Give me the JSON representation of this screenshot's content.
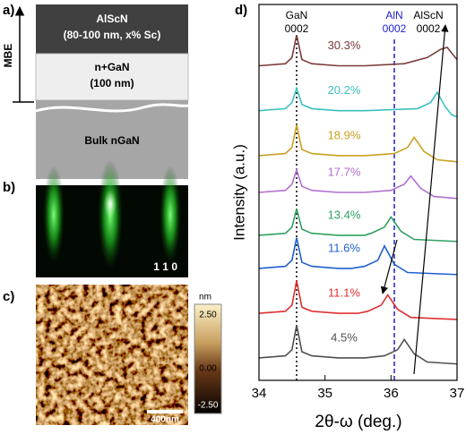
{
  "panels": {
    "a": {
      "label": "a)",
      "growth": "MBE",
      "layers": [
        {
          "name": "AlScN",
          "detail": "(80-100 nm, x% Sc)"
        },
        {
          "name": "n+GaN",
          "detail": "(100 nm)"
        },
        {
          "name": "Bulk nGaN"
        }
      ]
    },
    "b": {
      "label": "b)",
      "direction": "1 1 0"
    },
    "c": {
      "label": "c)",
      "scale_bar": "400nm",
      "colorbar": {
        "unit": "nm",
        "ticks": [
          "2.50",
          "0.00",
          "-2.50"
        ]
      }
    }
  },
  "chart_data": {
    "type": "line",
    "panel_label": "d)",
    "x_label": "2θ-ω (deg.)",
    "y_label": "Intensity (a.u.)",
    "xlim": [
      34,
      37
    ],
    "xticks": [
      34,
      35,
      36,
      37
    ],
    "ylim": [
      0,
      9.2
    ],
    "reference_lines": [
      {
        "name": "GaN",
        "reflection": "0002",
        "x": 34.57,
        "color": "#000000",
        "style": "dotted"
      },
      {
        "name": "AlN",
        "reflection": "0002",
        "x": 36.05,
        "color": "#1f1fd0",
        "style": "dashed"
      }
    ],
    "peak_label": {
      "name": "AlScN",
      "reflection": "0002"
    },
    "series": [
      {
        "name": "4.5%",
        "color": "#505050",
        "x": [
          34,
          34.4,
          34.5,
          34.57,
          34.65,
          34.8,
          35.2,
          35.6,
          35.9,
          36.1,
          36.2,
          36.35,
          36.55,
          37
        ],
        "values": [
          0.55,
          0.6,
          0.75,
          1.35,
          0.7,
          0.6,
          0.55,
          0.55,
          0.6,
          0.75,
          1.0,
          0.65,
          0.45,
          0.4
        ]
      },
      {
        "name": "11.1%",
        "color": "#e03030",
        "x": [
          34,
          34.4,
          34.5,
          34.57,
          34.65,
          34.8,
          35.2,
          35.5,
          35.65,
          35.85,
          35.95,
          36.1,
          36.3,
          37
        ],
        "values": [
          1.64,
          1.69,
          1.84,
          2.44,
          1.79,
          1.69,
          1.64,
          1.64,
          1.69,
          1.84,
          2.09,
          1.74,
          1.54,
          1.49
        ]
      },
      {
        "name": "11.6%",
        "color": "#2060d0",
        "x": [
          34,
          34.4,
          34.5,
          34.57,
          34.65,
          34.8,
          35.2,
          35.4,
          35.6,
          35.8,
          35.9,
          36.05,
          36.25,
          37
        ],
        "values": [
          2.74,
          2.79,
          2.94,
          3.49,
          2.89,
          2.79,
          2.74,
          2.74,
          2.79,
          2.94,
          3.29,
          2.84,
          2.64,
          2.59
        ]
      },
      {
        "name": "13.4%",
        "color": "#30a060",
        "x": [
          34,
          34.4,
          34.5,
          34.57,
          34.65,
          34.8,
          35.2,
          35.6,
          35.7,
          35.9,
          36.0,
          36.15,
          36.35,
          37
        ],
        "values": [
          3.55,
          3.6,
          3.75,
          4.2,
          3.7,
          3.6,
          3.55,
          3.55,
          3.6,
          3.75,
          4.0,
          3.65,
          3.45,
          3.4
        ]
      },
      {
        "name": "17.7%",
        "color": "#b070d0",
        "x": [
          34,
          34.4,
          34.5,
          34.57,
          34.65,
          34.8,
          35.2,
          35.6,
          36.0,
          36.2,
          36.3,
          36.45,
          36.65,
          37
        ],
        "values": [
          4.6,
          4.65,
          4.8,
          5.15,
          4.75,
          4.65,
          4.6,
          4.6,
          4.65,
          4.8,
          5.0,
          4.7,
          4.5,
          4.45
        ]
      },
      {
        "name": "18.9%",
        "color": "#c8a020",
        "x": [
          34,
          34.4,
          34.5,
          34.57,
          34.65,
          34.8,
          35.2,
          35.6,
          36.05,
          36.25,
          36.35,
          36.5,
          36.7,
          37
        ],
        "values": [
          5.5,
          5.55,
          5.7,
          6.25,
          5.65,
          5.55,
          5.5,
          5.5,
          5.55,
          5.7,
          5.95,
          5.6,
          5.4,
          5.35
        ]
      },
      {
        "name": "20.2%",
        "color": "#3cc0c0",
        "x": [
          34,
          34.4,
          34.5,
          34.57,
          34.65,
          34.8,
          35.2,
          35.6,
          36.4,
          36.6,
          36.7,
          36.82,
          36.92,
          37
        ],
        "values": [
          6.6,
          6.65,
          6.8,
          7.15,
          6.75,
          6.65,
          6.6,
          6.6,
          6.65,
          6.8,
          7.05,
          6.7,
          6.5,
          6.45
        ]
      },
      {
        "name": "30.3%",
        "color": "#7b3b3b",
        "x": [
          34,
          34.4,
          34.5,
          34.57,
          34.65,
          34.8,
          35.2,
          35.6,
          36.2,
          36.55,
          36.75,
          36.85,
          36.95,
          37
        ],
        "values": [
          7.7,
          7.75,
          7.9,
          8.45,
          7.85,
          7.75,
          7.7,
          7.7,
          7.75,
          7.9,
          8.1,
          8.15,
          7.95,
          7.85
        ]
      }
    ]
  }
}
